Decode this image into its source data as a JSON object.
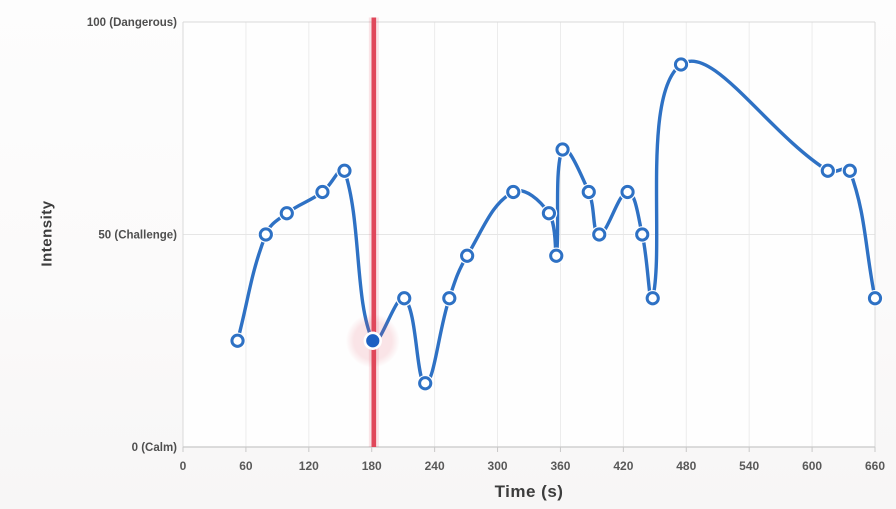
{
  "chart_data": {
    "type": "line",
    "title": "",
    "xlabel": "Time (s)",
    "ylabel": "Intensity",
    "xlim": [
      0,
      660
    ],
    "ylim": [
      0,
      100
    ],
    "grid": true,
    "legend": "none",
    "x_ticks": [
      0,
      60,
      120,
      180,
      240,
      300,
      360,
      420,
      480,
      540,
      600,
      660
    ],
    "y_ticks": [
      {
        "value": 0,
        "label": "0 (Calm)"
      },
      {
        "value": 50,
        "label": "50 (Challenge)"
      },
      {
        "value": 100,
        "label": "100 (Dangerous)"
      }
    ],
    "series": [
      {
        "name": "Intensity",
        "points": [
          [
            52,
            25
          ],
          [
            79,
            50
          ],
          [
            99,
            55
          ],
          [
            133,
            60
          ],
          [
            154,
            65
          ],
          [
            181,
            25
          ],
          [
            211,
            35
          ],
          [
            231,
            15
          ],
          [
            254,
            35
          ],
          [
            271,
            45
          ],
          [
            315,
            60
          ],
          [
            349,
            55
          ],
          [
            356,
            45
          ],
          [
            362,
            70
          ],
          [
            387,
            60
          ],
          [
            397,
            50
          ],
          [
            424,
            60
          ],
          [
            438,
            50
          ],
          [
            448,
            35
          ],
          [
            475,
            90
          ],
          [
            615,
            65
          ],
          [
            636,
            65
          ],
          [
            660,
            35
          ]
        ]
      }
    ],
    "current_point_index": 5,
    "cursor_time": 182,
    "line_tension": 0.4
  },
  "colors": {
    "line_blue": "#2e71c4",
    "current_dot_blue": "#1d60c2",
    "cursor_red": "#e0475a",
    "cursor_glow": "rgba(224,71,90,0.14)",
    "grid_line": "#ececec",
    "mid_grid_line": "#e6e6e6",
    "plot_border": "#d9d9d9",
    "axis_line": "#c8c8c8",
    "plot_bg": "#fefefe"
  },
  "labels": {
    "x_axis_title": "Time (s)",
    "y_axis_title": "Intensity"
  }
}
